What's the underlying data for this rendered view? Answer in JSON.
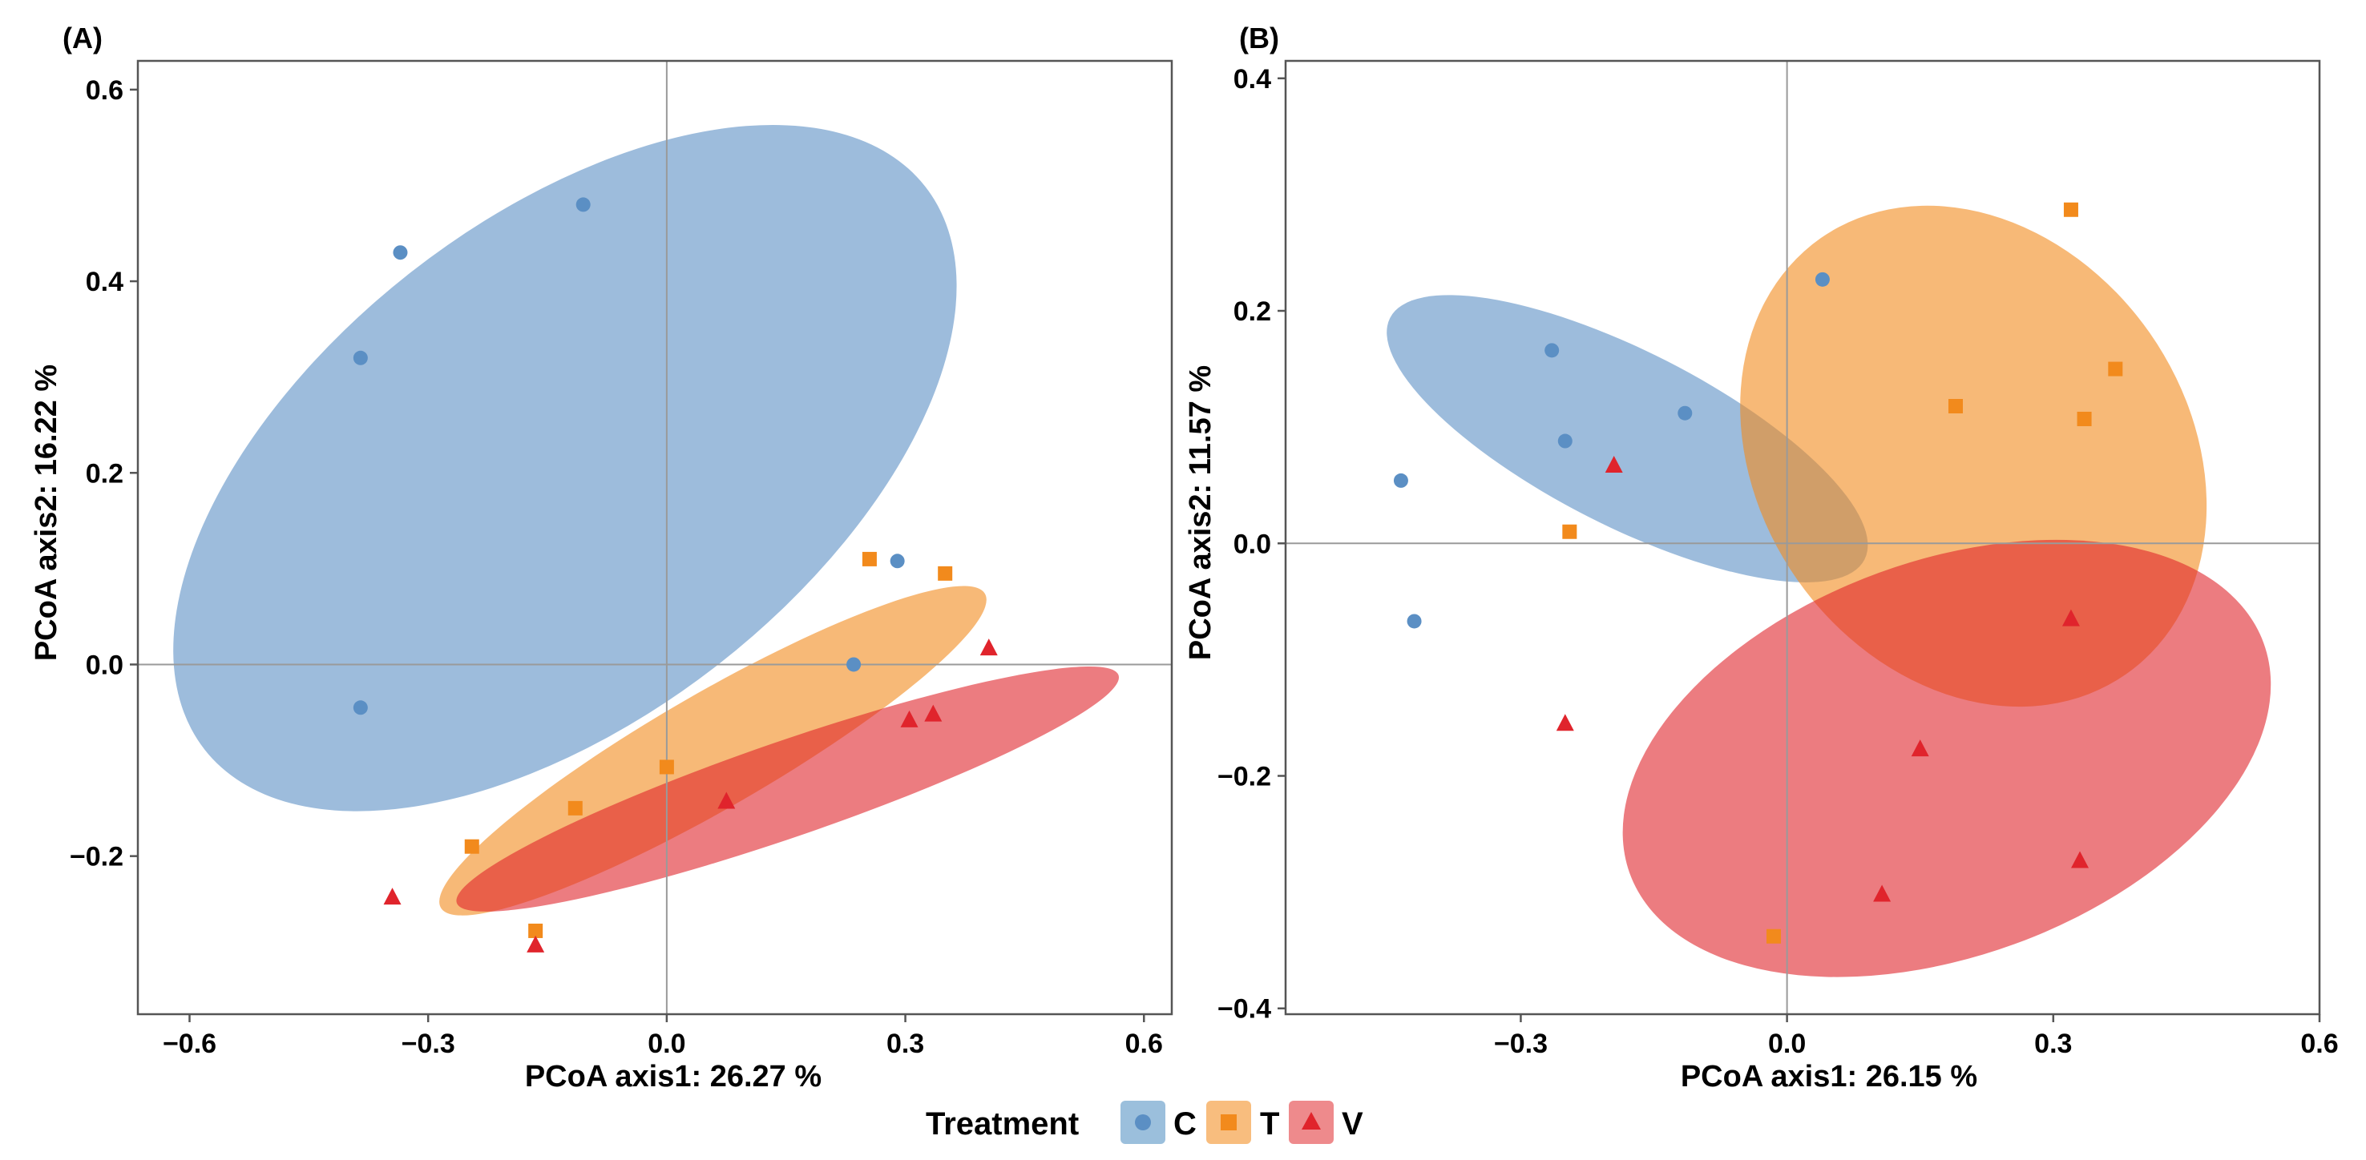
{
  "legend": {
    "title": "Treatment",
    "items": [
      {
        "label": "C",
        "color": "#5b8fc4",
        "fill": "#9bbfdc",
        "marker": "circle"
      },
      {
        "label": "T",
        "color": "#f28a1c",
        "fill": "#f8bd7e",
        "marker": "square"
      },
      {
        "label": "V",
        "color": "#e0242c",
        "fill": "#ee8a8c",
        "marker": "triangle"
      }
    ]
  },
  "chart_data": [
    {
      "type": "scatter",
      "panel_label": "(A)",
      "xlabel": "PCoA axis1:  26.27 %",
      "ylabel": "PCoA axis2:  16.22 %",
      "xlim": [
        -0.665,
        0.635
      ],
      "ylim": [
        -0.365,
        0.63
      ],
      "xticks": [
        -0.6,
        -0.3,
        0.0,
        0.3,
        0.6
      ],
      "xtick_labels": [
        "−0.6",
        "−0.3",
        "0.0",
        "0.3",
        "0.6"
      ],
      "yticks": [
        -0.2,
        0.0,
        0.2,
        0.4,
        0.6
      ],
      "ytick_labels": [
        "−0.2",
        "0.0",
        "0.2",
        "0.4",
        "0.6"
      ],
      "ref_lines": {
        "x": 0.0,
        "y": 0.0
      },
      "series": [
        {
          "name": "C",
          "points": [
            [
              -0.105,
              0.48
            ],
            [
              -0.335,
              0.43
            ],
            [
              -0.385,
              0.32
            ],
            [
              -0.385,
              -0.045
            ],
            [
              0.235,
              0.0
            ],
            [
              0.29,
              0.108
            ]
          ],
          "ellipse": {
            "cx": -0.128,
            "cy": 0.205,
            "rx": 0.575,
            "ry": 0.26,
            "angle_deg": -38
          }
        },
        {
          "name": "T",
          "points": [
            [
              0.255,
              0.11
            ],
            [
              0.35,
              0.095
            ],
            [
              0.0,
              -0.107
            ],
            [
              -0.115,
              -0.15
            ],
            [
              -0.245,
              -0.19
            ],
            [
              -0.165,
              -0.278
            ]
          ],
          "ellipse": {
            "cx": 0.058,
            "cy": -0.09,
            "rx": 0.395,
            "ry": 0.06,
            "angle_deg": -30
          }
        },
        {
          "name": "V",
          "points": [
            [
              0.405,
              0.017
            ],
            [
              0.335,
              -0.052
            ],
            [
              0.305,
              -0.058
            ],
            [
              0.075,
              -0.143
            ],
            [
              -0.345,
              -0.243
            ],
            [
              -0.165,
              -0.293
            ]
          ],
          "ellipse": {
            "cx": 0.152,
            "cy": -0.13,
            "rx": 0.44,
            "ry": 0.05,
            "angle_deg": -19
          }
        }
      ]
    },
    {
      "type": "scatter",
      "panel_label": "(B)",
      "xlabel": "PCoA axis1:  26.15 %",
      "ylabel": "PCoA axis2:  11.57 %",
      "xlim": [
        -0.565,
        0.6
      ],
      "ylim": [
        -0.405,
        0.415
      ],
      "xticks": [
        -0.3,
        0.0,
        0.3,
        0.6
      ],
      "xtick_labels": [
        "−0.3",
        "0.0",
        "0.3",
        "0.6"
      ],
      "yticks": [
        -0.4,
        -0.2,
        0.0,
        0.2,
        0.4
      ],
      "ytick_labels": [
        "−0.4",
        "−0.2",
        "0.0",
        "0.2",
        "0.4"
      ],
      "ref_lines": {
        "x": 0.0,
        "y": 0.0
      },
      "series": [
        {
          "name": "C",
          "points": [
            [
              0.04,
              0.227
            ],
            [
              -0.265,
              0.166
            ],
            [
              -0.115,
              0.112
            ],
            [
              -0.25,
              0.088
            ],
            [
              -0.435,
              0.054
            ],
            [
              -0.42,
              -0.067
            ]
          ],
          "ellipse": {
            "cx": -0.18,
            "cy": 0.09,
            "rx": 0.3,
            "ry": 0.075,
            "angle_deg": 27
          }
        },
        {
          "name": "T",
          "points": [
            [
              0.32,
              0.287
            ],
            [
              0.37,
              0.15
            ],
            [
              0.19,
              0.118
            ],
            [
              0.335,
              0.107
            ],
            [
              -0.245,
              0.01
            ],
            [
              -0.015,
              -0.338
            ]
          ],
          "ellipse": {
            "cx": 0.21,
            "cy": 0.075,
            "rx": 0.3,
            "ry": 0.185,
            "angle_deg": 55
          }
        },
        {
          "name": "V",
          "points": [
            [
              -0.195,
              0.067
            ],
            [
              0.32,
              -0.065
            ],
            [
              -0.25,
              -0.155
            ],
            [
              0.15,
              -0.177
            ],
            [
              0.33,
              -0.273
            ],
            [
              0.107,
              -0.302
            ]
          ],
          "ellipse": {
            "cx": 0.18,
            "cy": -0.185,
            "rx": 0.38,
            "ry": 0.17,
            "angle_deg": -20
          }
        }
      ]
    }
  ]
}
